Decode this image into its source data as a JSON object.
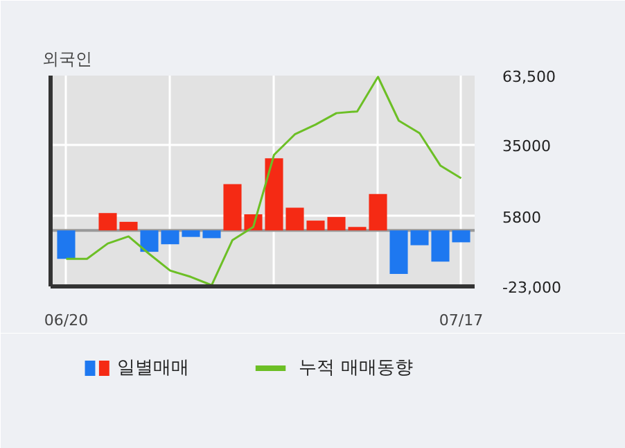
{
  "chart_data": {
    "type": "bar",
    "title": "외국인",
    "categories": [
      "06/20",
      null,
      null,
      null,
      null,
      null,
      null,
      null,
      null,
      null,
      null,
      null,
      null,
      null,
      null,
      null,
      null,
      null,
      null,
      "07/17"
    ],
    "series": [
      {
        "name": "일별매매",
        "colors": [
          "#1e78f0",
          "#f52a14",
          "#f52a14",
          "#f52a14",
          "#1e78f0",
          "#1e78f0",
          "#1e78f0",
          "#1e78f0",
          "#f52a14",
          "#f52a14",
          "#f52a14",
          "#f52a14",
          "#f52a14",
          "#f52a14",
          "#f52a14",
          "#f52a14",
          "#1e78f0",
          "#1e78f0",
          "#1e78f0",
          "#1e78f0"
        ],
        "values": [
          -11700,
          0,
          7100,
          3500,
          -8800,
          -5700,
          -2700,
          -3200,
          19000,
          6600,
          29600,
          9300,
          4000,
          5500,
          1400,
          14900,
          -17900,
          -6100,
          -12800,
          -4900
        ]
      },
      {
        "name": "누적 매매동향",
        "type": "line",
        "color": "#6cbf25",
        "values": [
          -11700,
          -11700,
          -5400,
          -2500,
          -9700,
          -16500,
          -19100,
          -22500,
          -4000,
          1400,
          31000,
          39400,
          43400,
          48100,
          48800,
          63000,
          45000,
          39900,
          26600,
          21400
        ]
      }
    ],
    "ylim": [
      -23000,
      63500
    ],
    "yticks": [
      {
        "value": 63500,
        "label": "63,500"
      },
      {
        "value": 35000,
        "label": "35000"
      },
      {
        "value": 5800,
        "label": "5800"
      },
      {
        "value": -23000,
        "label": "-23,000"
      }
    ],
    "ref_lines": [
      {
        "axis": "y",
        "value": 0,
        "label": null,
        "color": "#999999"
      }
    ],
    "grid": true,
    "legend": "bottom"
  }
}
